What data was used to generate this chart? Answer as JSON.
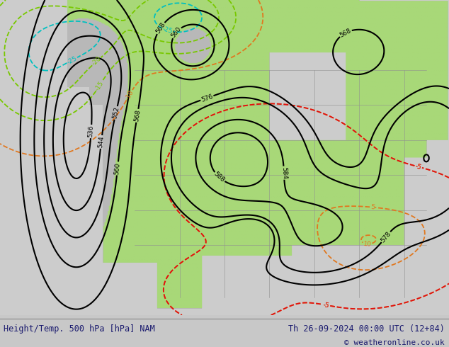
{
  "title_left": "Height/Temp. 500 hPa [hPa] NAM",
  "title_right": "Th 26-09-2024 00:00 UTC (12+84)",
  "copyright": "© weatheronline.co.uk",
  "footer_text_color": "#1a1a6e",
  "fig_width": 6.34,
  "fig_height": 4.9,
  "dpi": 100,
  "bg_gray": "#c8c8c8",
  "green_color": "#a8d878",
  "footer_bg": "#d2d2d2",
  "contour_black": "#000000",
  "contour_orange": "#e07820",
  "contour_red": "#e01010",
  "contour_cyan": "#00c0c0",
  "contour_green": "#78c800",
  "border_color": "#909090",
  "coast_color": "#606060"
}
